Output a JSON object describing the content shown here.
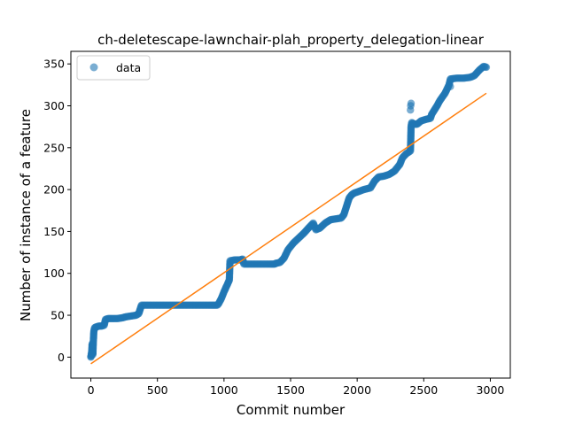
{
  "chart_data": {
    "type": "scatter",
    "title": "ch-deletescape-lawnchair-plah_property_delegation-linear",
    "xlabel": "Commit number",
    "ylabel": "Number of instance of a feature",
    "xlim": [
      -150,
      3150
    ],
    "ylim": [
      -25,
      365
    ],
    "xticks": [
      0,
      500,
      1000,
      1500,
      2000,
      2500,
      3000
    ],
    "yticks": [
      0,
      50,
      100,
      150,
      200,
      250,
      300,
      350
    ],
    "grid": false,
    "legend": {
      "position": "top-left",
      "entries": [
        "data"
      ]
    },
    "colors": {
      "data": "#1f77b4",
      "fit": "#ff7f0e"
    },
    "series": [
      {
        "name": "data",
        "kind": "scatter",
        "segments": [
          [
            0,
            0
          ],
          [
            5,
            3
          ],
          [
            10,
            16
          ],
          [
            15,
            3
          ],
          [
            18,
            16
          ],
          [
            22,
            30
          ],
          [
            28,
            35
          ],
          [
            40,
            36
          ],
          [
            60,
            37
          ],
          [
            80,
            37
          ],
          [
            100,
            38
          ],
          [
            110,
            45
          ],
          [
            130,
            46
          ],
          [
            160,
            46
          ],
          [
            200,
            46
          ],
          [
            240,
            47
          ],
          [
            260,
            48
          ],
          [
            300,
            49
          ],
          [
            340,
            50
          ],
          [
            360,
            52
          ],
          [
            380,
            62
          ],
          [
            500,
            62
          ],
          [
            600,
            62
          ],
          [
            700,
            62
          ],
          [
            800,
            62
          ],
          [
            900,
            62
          ],
          [
            950,
            62
          ],
          [
            960,
            64
          ],
          [
            980,
            70
          ],
          [
            1000,
            78
          ],
          [
            1020,
            85
          ],
          [
            1040,
            92
          ],
          [
            1045,
            115
          ],
          [
            1080,
            116
          ],
          [
            1120,
            116
          ],
          [
            1140,
            117
          ],
          [
            1150,
            111
          ],
          [
            1250,
            111
          ],
          [
            1350,
            111
          ],
          [
            1380,
            111
          ],
          [
            1390,
            112
          ],
          [
            1420,
            113
          ],
          [
            1450,
            118
          ],
          [
            1480,
            128
          ],
          [
            1520,
            136
          ],
          [
            1560,
            142
          ],
          [
            1600,
            148
          ],
          [
            1640,
            155
          ],
          [
            1670,
            160
          ],
          [
            1690,
            152
          ],
          [
            1720,
            154
          ],
          [
            1760,
            160
          ],
          [
            1800,
            164
          ],
          [
            1840,
            165
          ],
          [
            1880,
            166
          ],
          [
            1900,
            170
          ],
          [
            1920,
            180
          ],
          [
            1940,
            190
          ],
          [
            1960,
            194
          ],
          [
            1980,
            196
          ],
          [
            2000,
            197
          ],
          [
            2050,
            200
          ],
          [
            2100,
            202
          ],
          [
            2130,
            210
          ],
          [
            2160,
            215
          ],
          [
            2200,
            216
          ],
          [
            2240,
            218
          ],
          [
            2280,
            222
          ],
          [
            2320,
            230
          ],
          [
            2340,
            238
          ],
          [
            2370,
            243
          ],
          [
            2400,
            246
          ],
          [
            2402,
            257
          ],
          [
            2405,
            275
          ],
          [
            2410,
            280
          ],
          [
            2430,
            278
          ],
          [
            2450,
            278
          ],
          [
            2480,
            282
          ],
          [
            2520,
            284
          ],
          [
            2550,
            285
          ],
          [
            2560,
            290
          ],
          [
            2600,
            300
          ],
          [
            2620,
            306
          ],
          [
            2660,
            315
          ],
          [
            2690,
            325
          ],
          [
            2700,
            332
          ],
          [
            2750,
            333
          ],
          [
            2800,
            333
          ],
          [
            2850,
            334
          ],
          [
            2880,
            336
          ],
          [
            2920,
            343
          ],
          [
            2950,
            347
          ],
          [
            2970,
            346
          ]
        ],
        "outliers": [
          [
            0,
            1
          ],
          [
            3,
            4
          ],
          [
            2400,
            295
          ],
          [
            2402,
            300
          ],
          [
            2405,
            303
          ],
          [
            2700,
            323
          ]
        ]
      },
      {
        "name": "fit",
        "kind": "line",
        "points": [
          [
            0,
            -8
          ],
          [
            2970,
            315
          ]
        ]
      }
    ]
  }
}
